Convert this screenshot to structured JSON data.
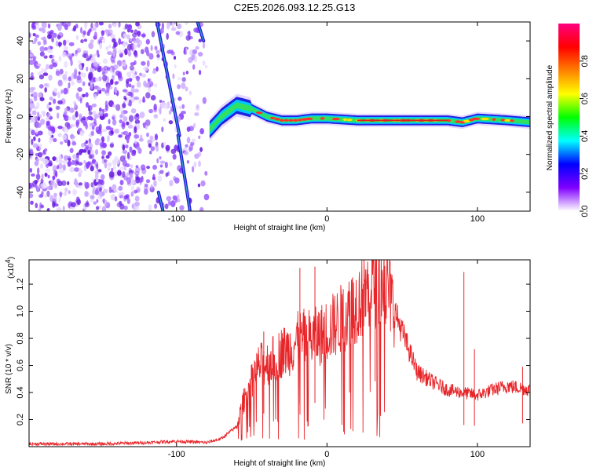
{
  "figure": {
    "title": "C2E5.2026.093.12.25.G13"
  },
  "chart_data": [
    {
      "type": "heatmap",
      "xlabel": "Height of straight line (km)",
      "ylabel": "Frequency (Hz)",
      "xlim": [
        -198,
        135
      ],
      "ylim": [
        -50,
        50
      ],
      "xticks": [
        -100,
        0,
        100
      ],
      "xtick_labels": [
        "-100",
        "0",
        "100"
      ],
      "yticks": [
        -40,
        -20,
        0,
        20,
        40
      ],
      "ytick_labels": [
        "-40",
        "-20",
        "0",
        "20",
        "40"
      ],
      "colorbar": {
        "label": "Normalized spectral amplitude",
        "range": [
          0,
          1
        ],
        "ticks": [
          0.0,
          0.2,
          0.4,
          0.6,
          0.8
        ],
        "tick_labels": [
          "0.0",
          "0.2",
          "0.4",
          "0.6",
          "0.8"
        ],
        "colors": [
          "#ffffff",
          "#8000ff",
          "#0000ff",
          "#00ffff",
          "#00ff00",
          "#ffff00",
          "#ff8000",
          "#ff0000",
          "#ff0080"
        ]
      },
      "ridge": {
        "x": [
          -78,
          -70,
          -60,
          -50,
          -40,
          -30,
          -20,
          -10,
          0,
          20,
          40,
          60,
          80,
          90,
          100,
          120,
          135
        ],
        "y": [
          -7,
          0,
          6,
          4,
          0,
          -2,
          -2,
          -1,
          -1,
          -2,
          -2,
          -2,
          -2,
          -3,
          -1,
          -2,
          -3
        ]
      },
      "streaks": [
        {
          "x": [
            -113,
            -98
          ],
          "y": [
            50,
            -10
          ]
        },
        {
          "x": [
            -99,
            -91
          ],
          "y": [
            -10,
            -50
          ]
        },
        {
          "x": [
            -86,
            -82
          ],
          "y": [
            50,
            40
          ]
        },
        {
          "x": [
            -112,
            -109
          ],
          "y": [
            -40,
            -50
          ]
        }
      ],
      "noise_region": {
        "x": [
          -198,
          -80
        ],
        "y": [
          -50,
          50
        ]
      },
      "grid": false
    },
    {
      "type": "line",
      "xlabel": "Height of straight line (km)",
      "ylabel": "SNR (10 * v/v)",
      "y_scale_label": "(x10",
      "y_scale_exp": "4",
      "y_scale_close": ")",
      "xlim": [
        -198,
        135
      ],
      "ylim": [
        0,
        1.38
      ],
      "xticks": [
        -100,
        0,
        100
      ],
      "xtick_labels": [
        "-100",
        "0",
        "100"
      ],
      "yticks": [
        0.2,
        0.4,
        0.6,
        0.8,
        1.0,
        1.2
      ],
      "ytick_labels": [
        "0.2",
        "0.4",
        "0.6",
        "0.8",
        "1.0",
        "1.2"
      ],
      "color": "#e8262a",
      "envelope": {
        "x": [
          -198,
          -150,
          -120,
          -100,
          -80,
          -70,
          -60,
          -55,
          -50,
          -45,
          -40,
          -35,
          -30,
          -25,
          -20,
          -15,
          -10,
          -5,
          0,
          5,
          10,
          15,
          20,
          25,
          30,
          35,
          40,
          45,
          50,
          55,
          60,
          70,
          80,
          90,
          100,
          110,
          120,
          135
        ],
        "y": [
          0.02,
          0.02,
          0.03,
          0.04,
          0.03,
          0.06,
          0.15,
          0.35,
          0.5,
          0.6,
          0.62,
          0.65,
          0.7,
          0.72,
          0.78,
          0.8,
          0.8,
          0.82,
          0.86,
          0.9,
          0.95,
          1.0,
          1.06,
          1.12,
          1.2,
          1.22,
          1.18,
          1.0,
          0.85,
          0.7,
          0.55,
          0.48,
          0.42,
          0.4,
          0.38,
          0.42,
          0.45,
          0.42
        ]
      },
      "spikes": [
        {
          "x": -42,
          "y": 0.85
        },
        {
          "x": -18,
          "y": 1.32
        },
        {
          "x": -8,
          "y": 1.33
        },
        {
          "x": 15,
          "y": 1.15
        },
        {
          "x": 32,
          "y": 1.36
        },
        {
          "x": 91,
          "y": 1.29
        },
        {
          "x": 98,
          "y": 0.72
        },
        {
          "x": 130,
          "y": 0.59
        }
      ],
      "grid": false
    }
  ]
}
